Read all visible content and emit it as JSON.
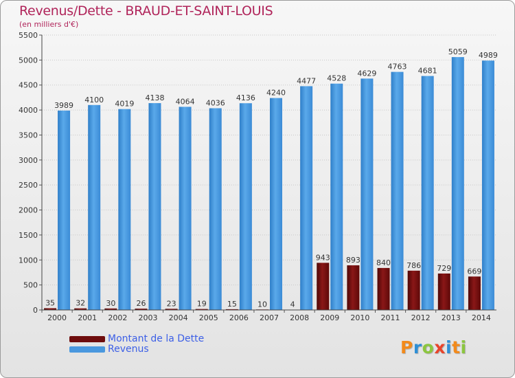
{
  "header": {
    "title": "Revenus/Dette - BRAUD-ET-SAINT-LOUIS",
    "subtitle": "(en milliers d'€)"
  },
  "legend": {
    "items": [
      {
        "label": "Montant de la Dette",
        "color": "#6e0c0c"
      },
      {
        "label": "Revenus",
        "color": "#4a98de"
      }
    ]
  },
  "logo": {
    "letters": [
      "P",
      "r",
      "o",
      "x",
      "i",
      "t",
      "i"
    ],
    "colors": [
      "#f28a1c",
      "#2e8fd6",
      "#8cc63f",
      "#e8442b",
      "#2e8fd6",
      "#f28a1c",
      "#8cc63f"
    ]
  },
  "chart_data": {
    "type": "bar",
    "categories": [
      "2000",
      "2001",
      "2002",
      "2003",
      "2004",
      "2005",
      "2006",
      "2007",
      "2008",
      "2009",
      "2010",
      "2011",
      "2012",
      "2013",
      "2014"
    ],
    "series": [
      {
        "name": "Montant de la Dette",
        "color": "#6e0c0c",
        "values": [
          35,
          32,
          30,
          26,
          23,
          19,
          15,
          10,
          4,
          943,
          893,
          840,
          786,
          729,
          669
        ]
      },
      {
        "name": "Revenus",
        "color": "#4a98de",
        "values": [
          3989,
          4100,
          4019,
          4138,
          4064,
          4036,
          4136,
          4240,
          4477,
          4528,
          4629,
          4763,
          4681,
          5059,
          4989
        ]
      }
    ],
    "ylim": [
      0,
      5500
    ],
    "yticks": [
      0,
      500,
      1000,
      1500,
      2000,
      2500,
      3000,
      3500,
      4000,
      4500,
      5000,
      5500
    ],
    "grid": true,
    "legend_position": "bottom-left"
  }
}
